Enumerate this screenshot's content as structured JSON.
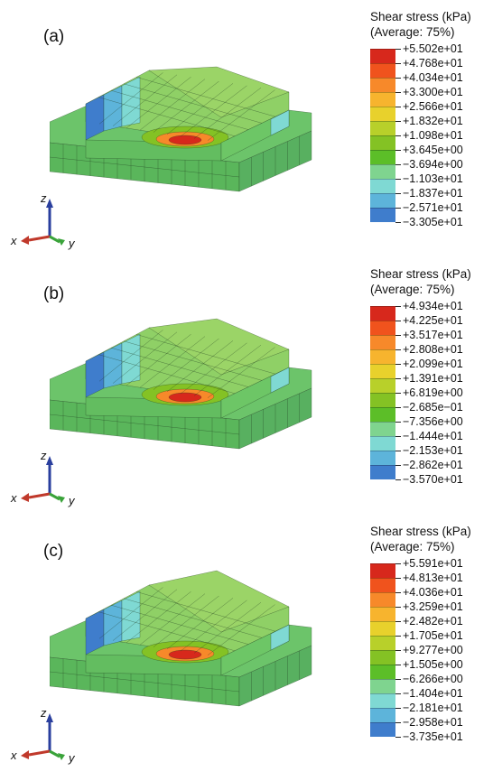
{
  "panels": [
    {
      "label": "(a)",
      "legend_title_line1": "Shear stress (kPa)",
      "legend_title_line2": "(Average: 75%)",
      "values": [
        "+5.502e+01",
        "+4.768e+01",
        "+4.034e+01",
        "+3.300e+01",
        "+2.566e+01",
        "+1.832e+01",
        "+1.098e+01",
        "+3.645e+00",
        "−3.694e+00",
        "−1.103e+01",
        "−1.837e+01",
        "−2.571e+01",
        "−3.305e+01"
      ]
    },
    {
      "label": "(b)",
      "legend_title_line1": "Shear stress (kPa)",
      "legend_title_line2": "(Average: 75%)",
      "values": [
        "+4.934e+01",
        "+4.225e+01",
        "+3.517e+01",
        "+2.808e+01",
        "+2.099e+01",
        "+1.391e+01",
        "+6.819e+00",
        "−2.685e−01",
        "−7.356e+00",
        "−1.444e+01",
        "−2.153e+01",
        "−2.862e+01",
        "−3.570e+01"
      ]
    },
    {
      "label": "(c)",
      "legend_title_line1": "Shear stress (kPa)",
      "legend_title_line2": "(Average: 75%)",
      "values": [
        "+5.591e+01",
        "+4.813e+01",
        "+4.036e+01",
        "+3.259e+01",
        "+2.482e+01",
        "+1.705e+01",
        "+9.277e+00",
        "+1.505e+00",
        "−6.266e+00",
        "−1.404e+01",
        "−2.181e+01",
        "−2.958e+01",
        "−3.735e+01"
      ]
    }
  ],
  "axis_labels": {
    "x": "x",
    "y": "y",
    "z": "z"
  },
  "colors": {
    "scale": [
      "#d7281c",
      "#f0531d",
      "#f7892a",
      "#f7b42e",
      "#e8d12c",
      "#b8d02a",
      "#84c224",
      "#5cbe28",
      "#7fd48f",
      "#7fd9d3",
      "#5db4da",
      "#3f7dcc",
      "#2347b3"
    ],
    "base_green": "#6cc46a",
    "deck_green": "#8fd066",
    "axis_x": "#c0392b",
    "axis_y": "#3aa33a",
    "axis_z": "#2a3f9e"
  }
}
